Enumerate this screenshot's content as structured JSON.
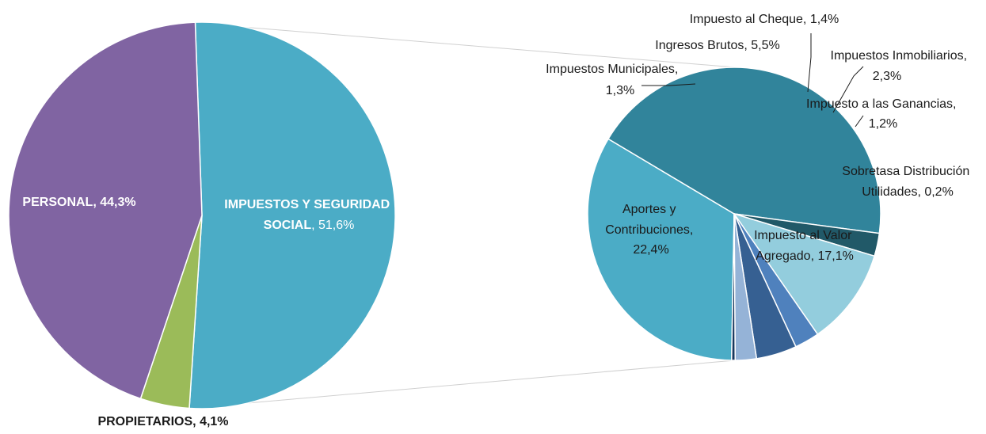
{
  "chart_data": [
    {
      "type": "pie",
      "slices": [
        {
          "label": "IMPUESTOS Y SEGURIDAD SOCIAL",
          "value": 51.6,
          "value_label": "51,6%",
          "color": "#4BACC6"
        },
        {
          "label": "PROPIETARIOS",
          "value": 4.1,
          "value_label": "4,1%",
          "color": "#9BBB59"
        },
        {
          "label": "PERSONAL",
          "value": 44.3,
          "value_label": "44,3%",
          "color": "#8064A2"
        }
      ]
    },
    {
      "type": "pie",
      "slices": [
        {
          "label": "Impuesto al Valor Agregado",
          "value": 17.1,
          "value_label": "17,1%",
          "color": "#4BACC6"
        },
        {
          "label": "Aportes y Contribuciones",
          "value": 22.4,
          "value_label": "22,4%",
          "color": "#31849B"
        },
        {
          "label": "Impuestos Municipales",
          "value": 1.3,
          "value_label": "1,3%",
          "color": "#215968"
        },
        {
          "label": "Ingresos Brutos",
          "value": 5.5,
          "value_label": "5,5%",
          "color": "#93CDDD"
        },
        {
          "label": "Impuesto al Cheque",
          "value": 1.4,
          "value_label": "1,4%",
          "color": "#4F81BD"
        },
        {
          "label": "Impuestos Inmobiliarios",
          "value": 2.3,
          "value_label": "2,3%",
          "color": "#366092"
        },
        {
          "label": "Impuesto a las Ganancias",
          "value": 1.2,
          "value_label": "1,2%",
          "color": "#95B3D7"
        },
        {
          "label": "Sobretasa Distribución Utilidades",
          "value": 0.2,
          "value_label": "0,2%",
          "color": "#17375E"
        }
      ]
    }
  ],
  "labels": {
    "main": {
      "impuestos_line1": "IMPUESTOS Y SEGURIDAD",
      "impuestos_line2": "SOCIAL",
      "impuestos_value": ", 51,6%",
      "personal": "PERSONAL, 44,3%",
      "propietarios": "PROPIETARIOS, 4,1%"
    },
    "detail": {
      "cheque": "Impuesto al Cheque, 1,4%",
      "ingresos": "Ingresos Brutos, 5,5%",
      "inmob_line1": "Impuestos Inmobiliarios,",
      "inmob_line2": "2,3%",
      "municipales_line1": "Impuestos Municipales,",
      "municipales_line2": "1,3%",
      "ganancias_line1": "Impuesto a las Ganancias,",
      "ganancias_line2": "1,2%",
      "sobretasa_line1": "Sobretasa Distribución",
      "sobretasa_line2": "Utilidades, 0,2%",
      "aportes_line1": "Aportes y",
      "aportes_line2": "Contribuciones,",
      "aportes_line3": "22,4%",
      "iva_line1": "Impuesto al Valor",
      "iva_line2": "Agregado, 17,1%"
    }
  }
}
